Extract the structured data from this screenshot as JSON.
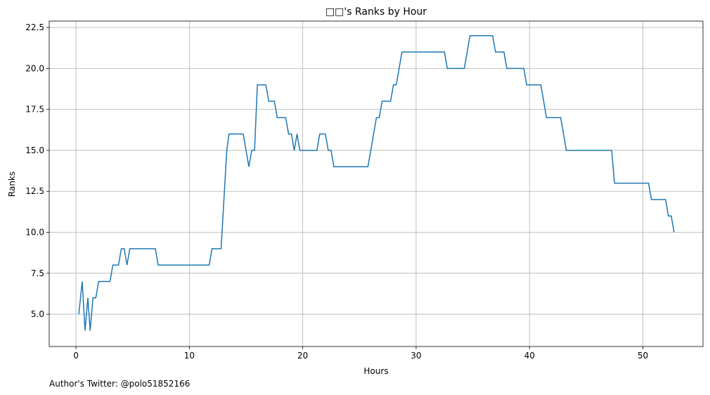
{
  "chart_data": {
    "type": "line",
    "title": "□□'s Ranks by Hour",
    "xlabel": "Hours",
    "ylabel": "Ranks",
    "footnote": "Author's Twitter: @polo51852166",
    "xlim": [
      -2.36,
      55.3
    ],
    "ylim": [
      3.03,
      22.89
    ],
    "xticks": [
      0,
      10,
      20,
      30,
      40,
      50
    ],
    "yticks": [
      {
        "value": 5,
        "label": "5.0"
      },
      7.5,
      {
        "value": 10,
        "label": "10.0"
      },
      12.5,
      {
        "value": 15,
        "label": "15.0"
      },
      17.5,
      {
        "value": 20,
        "label": "20.0"
      },
      22.5
    ],
    "grid": true,
    "x": [
      0.25,
      0.55,
      0.8,
      1.05,
      1.25,
      1.5,
      1.75,
      2.0,
      3.0,
      3.25,
      3.75,
      4.0,
      4.25,
      4.5,
      4.75,
      7.0,
      7.25,
      11.75,
      12.0,
      12.8,
      13.3,
      13.5,
      14.75,
      15.25,
      15.5,
      15.75,
      16.0,
      16.75,
      17.0,
      17.5,
      17.75,
      18.5,
      18.75,
      19.0,
      19.25,
      19.5,
      19.75,
      21.25,
      21.5,
      22.0,
      22.25,
      22.5,
      22.75,
      25.75,
      26.5,
      26.75,
      27.0,
      27.75,
      28.0,
      28.25,
      28.75,
      32.5,
      32.75,
      34.25,
      34.75,
      36.75,
      37.0,
      37.75,
      38.0,
      39.5,
      39.75,
      41.0,
      41.5,
      42.75,
      43.25,
      47.25,
      47.5,
      50.5,
      50.75,
      52.0,
      52.25,
      52.5,
      52.75
    ],
    "series": [
      {
        "name": "Ranks",
        "color": "#1f77b4",
        "values": [
          5,
          7,
          4,
          6,
          4,
          6,
          6,
          7,
          7,
          8,
          8,
          9,
          9,
          8,
          9,
          9,
          8,
          8,
          9,
          9,
          15,
          16,
          16,
          14,
          15,
          15,
          19,
          19,
          18,
          18,
          17,
          17,
          16,
          16,
          15,
          16,
          15,
          15,
          16,
          16,
          15,
          15,
          14,
          14,
          17,
          17,
          18,
          18,
          19,
          19,
          21,
          21,
          20,
          20,
          22,
          22,
          21,
          21,
          20,
          20,
          19,
          19,
          17,
          17,
          15,
          15,
          13,
          13,
          12,
          12,
          11,
          11,
          10
        ]
      }
    ]
  }
}
